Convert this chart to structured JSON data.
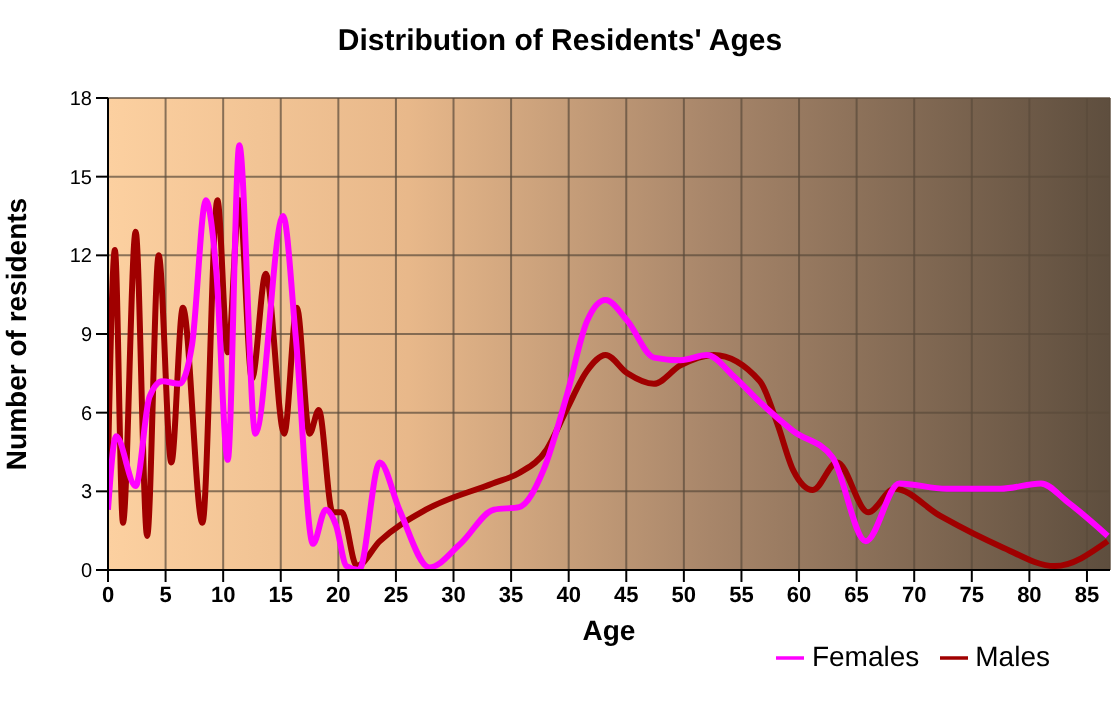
{
  "chart_data": {
    "type": "line",
    "title": "Distribution of Residents' Ages",
    "xlabel": "Age",
    "ylabel": "Number of residents",
    "xlim": [
      0,
      87
    ],
    "xticks": [
      0,
      5,
      10,
      15,
      20,
      25,
      30,
      35,
      40,
      45,
      50,
      55,
      60,
      65,
      70,
      75,
      80,
      85
    ],
    "ylim": [
      0,
      18
    ],
    "yticks": [
      0,
      3,
      6,
      9,
      12,
      15,
      18
    ],
    "grid": true,
    "legend": "bottom right",
    "marker": "none",
    "line_style": "solid",
    "series": [
      {
        "name": "Males",
        "color": "#a00000",
        "x": [
          0,
          0.6,
          1.3,
          2.4,
          3.4,
          4.4,
          5.5,
          6.5,
          8.2,
          9.5,
          10.4,
          11.4,
          12.5,
          13.7,
          15.3,
          16.4,
          17.5,
          18.3,
          19.5,
          20.3,
          21.6,
          23.6,
          27.6,
          33.4,
          35.7,
          38.1,
          39.8,
          41.6,
          43.2,
          45.1,
          47.4,
          49.7,
          52.6,
          56.6,
          58.1,
          59.5,
          61.2,
          63.3,
          66.0,
          68.3,
          72.3,
          77.5,
          82.2,
          86.8
        ],
        "values": [
          4.1,
          12.2,
          1.8,
          12.9,
          1.3,
          12.0,
          4.1,
          10.0,
          1.8,
          14.1,
          8.3,
          14.1,
          7.3,
          11.3,
          5.2,
          10.0,
          5.2,
          6.1,
          2.2,
          2.2,
          0.15,
          1.1,
          2.3,
          3.3,
          3.7,
          4.6,
          6.1,
          7.6,
          8.2,
          7.5,
          7.1,
          7.8,
          8.2,
          7.2,
          5.6,
          3.8,
          3.05,
          4.1,
          2.2,
          3.1,
          2.05,
          0.9,
          0.15,
          1.1
        ]
      },
      {
        "name": "Females",
        "color": "#ff00ff",
        "x": [
          0,
          0.7,
          2.4,
          3.6,
          4.7,
          6.2,
          7.3,
          8.5,
          9.4,
          10.4,
          11.4,
          12.8,
          15.2,
          16.3,
          17.8,
          18.9,
          19.8,
          20.7,
          21.8,
          23.6,
          25.3,
          27.9,
          30.6,
          33.5,
          35.7,
          37.8,
          39.8,
          41.6,
          43.2,
          45.1,
          47.4,
          49.7,
          52.0,
          54.3,
          56.6,
          59.5,
          62.9,
          65.8,
          68.7,
          72.8,
          77.5,
          81.0,
          83.3,
          86.8
        ],
        "values": [
          2.3,
          5.1,
          3.2,
          6.6,
          7.2,
          7.1,
          8.6,
          14.1,
          11.4,
          4.2,
          16.2,
          5.2,
          13.5,
          8.9,
          1.0,
          2.3,
          1.7,
          0.15,
          0,
          4.1,
          2.3,
          0.1,
          1.0,
          2.3,
          2.4,
          3.8,
          6.6,
          9.5,
          10.3,
          9.5,
          8.1,
          8.0,
          8.2,
          7.4,
          6.4,
          5.3,
          4.3,
          1.1,
          3.3,
          3.1,
          3.1,
          3.3,
          2.6,
          1.3
        ]
      }
    ]
  }
}
